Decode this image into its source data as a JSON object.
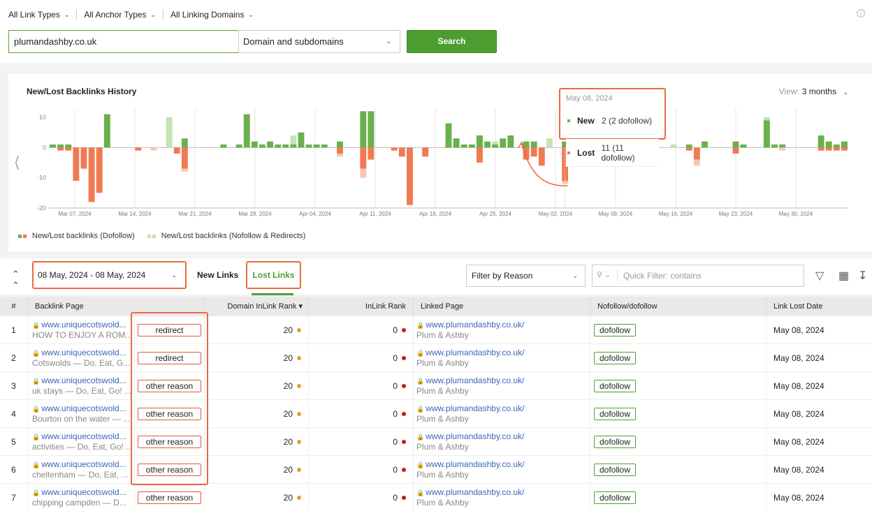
{
  "filters": {
    "link_types": "All Link Types",
    "anchor_types": "All Anchor Types",
    "linking_domains": "All Linking Domains"
  },
  "search": {
    "value": "plumandashby.co.uk",
    "scope": "Domain and subdomains",
    "button_label": "Search"
  },
  "chart_panel": {
    "title": "New/Lost Backlinks History",
    "view_label": "View:",
    "view_value": "3 months",
    "legend_dofollow": "New/Lost backlinks (Dofollow)",
    "legend_nofollow": "New/Lost backlinks (Nofollow & Redirects)"
  },
  "tooltip": {
    "date": "May 08, 2024",
    "new_label": "New",
    "new_value": "2 (2 dofollow)",
    "lost_label": "Lost",
    "lost_value": "11 (11 dofollow)"
  },
  "chart_data": {
    "type": "bar",
    "title": "New/Lost Backlinks History",
    "ylim": [
      -20,
      10
    ],
    "yticks": [
      10,
      0,
      -10,
      -20
    ],
    "xtick_labels": [
      "Mar 07, 2024",
      "Mar 14, 2024",
      "Mar 21, 2024",
      "Mar 28, 2024",
      "Apr 04, 2024",
      "Apr 11, 2024",
      "Apr 18, 2024",
      "Apr 25, 2024",
      "May 02, 2024",
      "May 09, 2024",
      "May 16, 2024",
      "May 23, 2024",
      "May 30, 2024"
    ],
    "series": [
      {
        "name": "New/Lost backlinks (Dofollow)",
        "color_new": "#6ab04c",
        "color_lost": "#f07a52",
        "new": [
          1,
          1,
          1,
          0,
          0,
          0,
          0,
          11,
          0,
          0,
          0,
          0,
          0,
          0,
          0,
          0,
          0,
          3,
          0,
          0,
          0,
          0,
          1,
          0,
          1,
          11,
          2,
          1,
          2,
          1,
          1,
          1,
          5,
          1,
          1,
          1,
          0,
          2,
          0,
          0,
          12,
          12,
          0,
          0,
          0,
          0,
          0,
          0,
          0,
          0,
          0,
          8,
          3,
          1,
          1,
          4,
          2,
          1,
          3,
          4,
          0,
          2,
          2,
          0,
          0,
          0,
          2,
          0,
          0,
          2,
          2,
          0,
          0,
          0,
          0,
          0,
          2,
          0,
          0,
          0,
          0,
          0,
          1,
          0,
          2,
          0,
          0,
          0,
          2,
          1,
          0,
          0,
          9,
          1,
          1,
          0,
          0,
          0,
          0,
          4,
          2,
          1,
          2
        ],
        "lost": [
          0,
          -1,
          -1,
          -11,
          -7,
          -18,
          -15,
          0,
          0,
          0,
          0,
          -1,
          0,
          0,
          0,
          0,
          -2,
          -7,
          0,
          0,
          0,
          0,
          0,
          0,
          0,
          0,
          0,
          0,
          0,
          0,
          0,
          0,
          0,
          0,
          0,
          0,
          0,
          -2,
          0,
          0,
          -7,
          -4,
          0,
          0,
          -1,
          -3,
          -19,
          0,
          -3,
          0,
          0,
          0,
          0,
          0,
          0,
          -5,
          0,
          0,
          0,
          0,
          0,
          -4,
          -3,
          -6,
          0,
          0,
          -11,
          0,
          0,
          0,
          0,
          0,
          0,
          0,
          0,
          0,
          0,
          0,
          0,
          0,
          0,
          0,
          -1,
          -4,
          0,
          0,
          0,
          0,
          -2,
          0,
          0,
          0,
          0,
          0,
          0,
          0,
          0,
          0,
          0,
          -1,
          -1,
          -1,
          -1
        ]
      },
      {
        "name": "New/Lost backlinks (Nofollow & Redirects)",
        "color_new": "#c4e3b6",
        "color_lost": "#f9c5b4",
        "new": [
          0,
          0,
          0,
          0,
          0,
          0,
          0,
          0,
          0,
          0,
          0,
          0,
          0,
          0,
          0,
          10,
          0,
          0,
          0,
          0,
          0,
          0,
          0,
          0,
          0,
          0,
          0,
          0,
          0,
          0,
          0,
          3,
          0,
          0,
          0,
          0,
          0,
          0,
          0,
          0,
          0,
          0,
          0,
          0,
          0,
          0,
          0,
          0,
          0,
          0,
          0,
          0,
          0,
          0,
          0,
          0,
          0,
          1,
          0,
          0,
          0,
          0,
          0,
          0,
          3,
          0,
          0,
          0,
          0,
          0,
          0,
          0,
          0,
          0,
          0,
          0,
          0,
          0,
          0,
          0,
          1,
          0,
          0,
          0,
          0,
          0,
          0,
          0,
          0,
          0,
          0,
          0,
          1,
          0,
          0,
          0,
          0,
          0,
          0,
          0,
          0,
          0,
          0,
          0
        ],
        "lost": [
          0,
          0,
          0,
          0,
          0,
          0,
          0,
          0,
          0,
          0,
          0,
          0,
          0,
          -1,
          0,
          0,
          0,
          -1,
          0,
          0,
          0,
          0,
          0,
          0,
          0,
          0,
          0,
          0,
          0,
          0,
          0,
          0,
          0,
          0,
          0,
          0,
          0,
          -1,
          0,
          0,
          -3,
          0,
          0,
          0,
          0,
          0,
          0,
          0,
          0,
          0,
          0,
          0,
          0,
          0,
          0,
          0,
          0,
          0,
          0,
          0,
          0,
          0,
          0,
          0,
          0,
          0,
          -1,
          0,
          0,
          0,
          0,
          0,
          0,
          0,
          0,
          0,
          0,
          0,
          0,
          0,
          0,
          0,
          0,
          -2,
          0,
          0,
          0,
          0,
          0,
          0,
          0,
          0,
          0,
          0,
          -1,
          0,
          0,
          0,
          0,
          0,
          0,
          0,
          0
        ]
      }
    ]
  },
  "controls": {
    "date_range": "08 May, 2024 - 08 May, 2024",
    "tab_new": "New Links",
    "tab_lost": "Lost Links",
    "reason_filter": "Filter by Reason",
    "quick_filter_placeholder": "Quick Filter: contains"
  },
  "table": {
    "headers": {
      "num": "#",
      "backlink": "Backlink Page",
      "domain_rank": "Domain InLink Rank",
      "inlink_rank": "InLink Rank",
      "linked_page": "Linked Page",
      "follow": "Nofollow/dofollow",
      "lost_date": "Link Lost Date"
    },
    "rows": [
      {
        "num": "1",
        "url": "www.uniquecotswold...",
        "sub": "HOW TO ENJOY A ROM...",
        "reason": "redirect",
        "domain_rank": "20",
        "inlink_rank": "0",
        "linked_url": "www.plumandashby.co.uk/",
        "linked_sub": "Plum & Ashby",
        "follow": "dofollow",
        "lost_date": "May 08, 2024"
      },
      {
        "num": "2",
        "url": "www.uniquecotswold...",
        "sub": "Cotswolds — Do, Eat, G...",
        "reason": "redirect",
        "domain_rank": "20",
        "inlink_rank": "0",
        "linked_url": "www.plumandashby.co.uk/",
        "linked_sub": "Plum & Ashby",
        "follow": "dofollow",
        "lost_date": "May 08, 2024"
      },
      {
        "num": "3",
        "url": "www.uniquecotswold...",
        "sub": "uk stays — Do, Eat, Go! ...",
        "reason": "other reason",
        "domain_rank": "20",
        "inlink_rank": "0",
        "linked_url": "www.plumandashby.co.uk/",
        "linked_sub": "Plum & Ashby",
        "follow": "dofollow",
        "lost_date": "May 08, 2024"
      },
      {
        "num": "4",
        "url": "www.uniquecotswold...",
        "sub": "Bourton on the water — ...",
        "reason": "other reason",
        "domain_rank": "20",
        "inlink_rank": "0",
        "linked_url": "www.plumandashby.co.uk/",
        "linked_sub": "Plum & Ashby",
        "follow": "dofollow",
        "lost_date": "May 08, 2024"
      },
      {
        "num": "5",
        "url": "www.uniquecotswold...",
        "sub": "activities — Do, Eat, Go! ...",
        "reason": "other reason",
        "domain_rank": "20",
        "inlink_rank": "0",
        "linked_url": "www.plumandashby.co.uk/",
        "linked_sub": "Plum & Ashby",
        "follow": "dofollow",
        "lost_date": "May 08, 2024"
      },
      {
        "num": "6",
        "url": "www.uniquecotswold...",
        "sub": "cheltenham — Do, Eat, ...",
        "reason": "other reason",
        "domain_rank": "20",
        "inlink_rank": "0",
        "linked_url": "www.plumandashby.co.uk/",
        "linked_sub": "Plum & Ashby",
        "follow": "dofollow",
        "lost_date": "May 08, 2024"
      },
      {
        "num": "7",
        "url": "www.uniquecotswold...",
        "sub": "chipping campden — D...",
        "reason": "other reason",
        "domain_rank": "20",
        "inlink_rank": "0",
        "linked_url": "www.plumandashby.co.uk/",
        "linked_sub": "Plum & Ashby",
        "follow": "dofollow",
        "lost_date": "May 08, 2024"
      }
    ]
  }
}
